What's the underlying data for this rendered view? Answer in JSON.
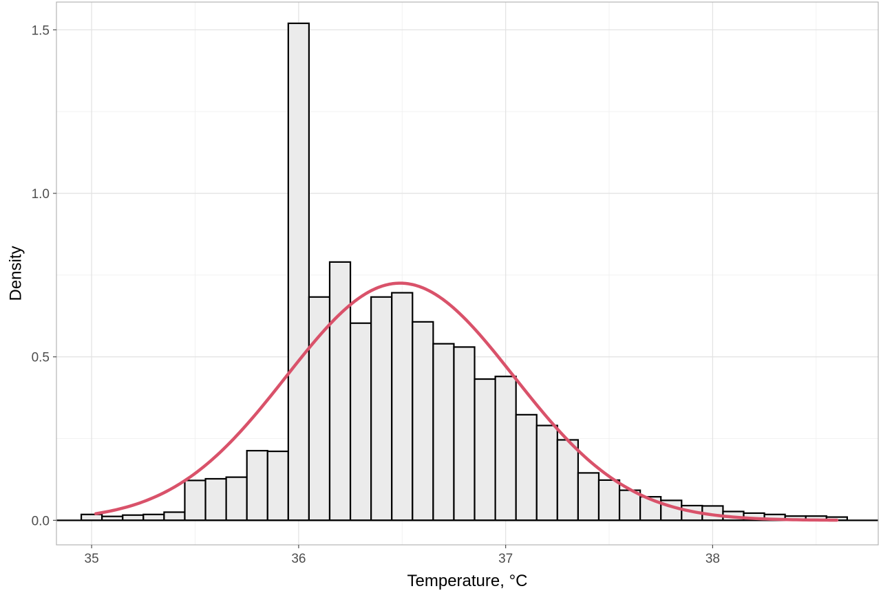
{
  "chart_data": {
    "type": "bar",
    "title": "",
    "xlabel": "Temperature, °C",
    "ylabel": "Density",
    "xlim": [
      34.83,
      38.8
    ],
    "ylim": [
      -0.075,
      1.585
    ],
    "x_ticks": [
      35,
      36,
      37,
      38
    ],
    "x_tick_labels": [
      "35",
      "36",
      "37",
      "38"
    ],
    "y_ticks": [
      0.0,
      0.5,
      1.0,
      1.5
    ],
    "y_tick_labels": [
      "0.0",
      "0.5",
      "1.0",
      "1.5"
    ],
    "grid": true,
    "legend": "none",
    "bin_width": 0.1,
    "bins": [
      {
        "x0": 34.95,
        "x1": 35.05,
        "density": 0.018
      },
      {
        "x0": 35.05,
        "x1": 35.15,
        "density": 0.012
      },
      {
        "x0": 35.15,
        "x1": 35.25,
        "density": 0.016
      },
      {
        "x0": 35.25,
        "x1": 35.35,
        "density": 0.018
      },
      {
        "x0": 35.35,
        "x1": 35.45,
        "density": 0.025
      },
      {
        "x0": 35.45,
        "x1": 35.55,
        "density": 0.122
      },
      {
        "x0": 35.55,
        "x1": 35.65,
        "density": 0.127
      },
      {
        "x0": 35.65,
        "x1": 35.75,
        "density": 0.132
      },
      {
        "x0": 35.75,
        "x1": 35.85,
        "density": 0.213
      },
      {
        "x0": 35.85,
        "x1": 35.95,
        "density": 0.211
      },
      {
        "x0": 35.95,
        "x1": 36.05,
        "density": 1.52
      },
      {
        "x0": 36.05,
        "x1": 36.15,
        "density": 0.683
      },
      {
        "x0": 36.15,
        "x1": 36.25,
        "density": 0.79
      },
      {
        "x0": 36.25,
        "x1": 36.35,
        "density": 0.603
      },
      {
        "x0": 36.35,
        "x1": 36.45,
        "density": 0.683
      },
      {
        "x0": 36.45,
        "x1": 36.55,
        "density": 0.696
      },
      {
        "x0": 36.55,
        "x1": 36.65,
        "density": 0.607
      },
      {
        "x0": 36.65,
        "x1": 36.75,
        "density": 0.54
      },
      {
        "x0": 36.75,
        "x1": 36.85,
        "density": 0.53
      },
      {
        "x0": 36.85,
        "x1": 36.95,
        "density": 0.432
      },
      {
        "x0": 36.95,
        "x1": 37.05,
        "density": 0.44
      },
      {
        "x0": 37.05,
        "x1": 37.15,
        "density": 0.323
      },
      {
        "x0": 37.15,
        "x1": 37.25,
        "density": 0.29
      },
      {
        "x0": 37.25,
        "x1": 37.35,
        "density": 0.246
      },
      {
        "x0": 37.35,
        "x1": 37.45,
        "density": 0.145
      },
      {
        "x0": 37.45,
        "x1": 37.55,
        "density": 0.123
      },
      {
        "x0": 37.55,
        "x1": 37.65,
        "density": 0.092
      },
      {
        "x0": 37.65,
        "x1": 37.75,
        "density": 0.072
      },
      {
        "x0": 37.75,
        "x1": 37.85,
        "density": 0.061
      },
      {
        "x0": 37.85,
        "x1": 37.95,
        "density": 0.045
      },
      {
        "x0": 37.95,
        "x1": 38.05,
        "density": 0.044
      },
      {
        "x0": 38.05,
        "x1": 38.15,
        "density": 0.027
      },
      {
        "x0": 38.15,
        "x1": 38.25,
        "density": 0.022
      },
      {
        "x0": 38.25,
        "x1": 38.35,
        "density": 0.018
      },
      {
        "x0": 38.35,
        "x1": 38.45,
        "density": 0.013
      },
      {
        "x0": 38.45,
        "x1": 38.55,
        "density": 0.013
      },
      {
        "x0": 38.55,
        "x1": 38.65,
        "density": 0.01
      }
    ],
    "series": [
      {
        "type": "line",
        "curve": "normal",
        "mean": 36.49,
        "sd": 0.55,
        "x_range": [
          35.02,
          38.6
        ],
        "color": "#d9526a"
      }
    ]
  }
}
